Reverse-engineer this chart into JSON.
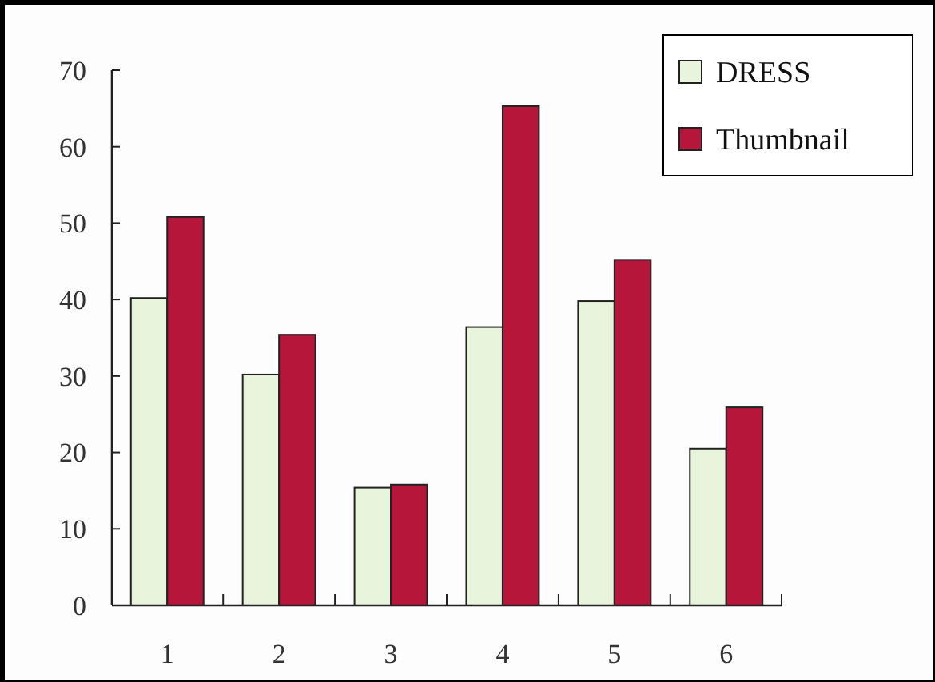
{
  "chart_data": {
    "type": "bar",
    "categories": [
      "1",
      "2",
      "3",
      "4",
      "5",
      "6"
    ],
    "series": [
      {
        "name": "DRESS",
        "color": "#e8f5dc",
        "values": [
          40.2,
          30.2,
          15.4,
          36.4,
          39.8,
          20.5
        ]
      },
      {
        "name": "Thumbnail",
        "color": "#b5163a",
        "values": [
          50.8,
          35.4,
          15.8,
          65.3,
          45.2,
          25.9
        ]
      }
    ],
    "ylim": [
      0,
      70
    ],
    "yticks": [
      0,
      10,
      20,
      30,
      40,
      50,
      60,
      70
    ],
    "grid": false,
    "legend": "top right"
  }
}
